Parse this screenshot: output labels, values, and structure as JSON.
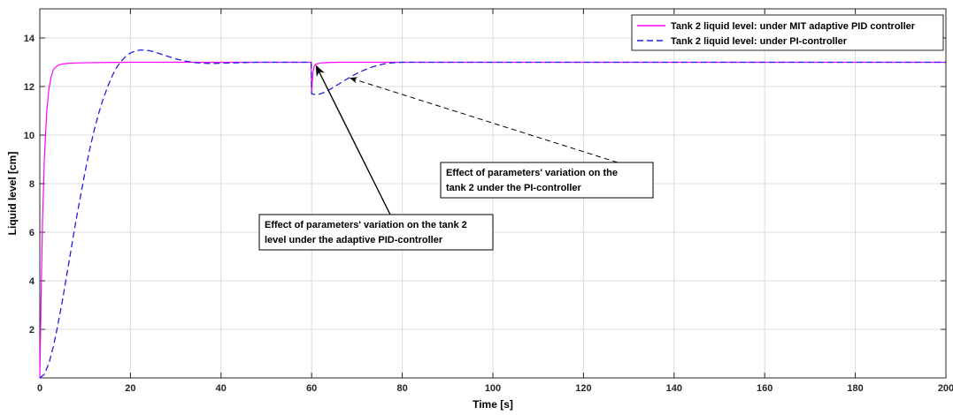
{
  "chart_data": {
    "type": "line",
    "xlabel": "Time [s]",
    "ylabel": "Liquid level [cm]",
    "xlim": [
      0,
      200
    ],
    "ylim": [
      0,
      15.2
    ],
    "xticks": [
      0,
      20,
      40,
      60,
      80,
      100,
      120,
      140,
      160,
      180,
      200
    ],
    "yticks": [
      2,
      4,
      6,
      8,
      10,
      12,
      14
    ],
    "grid": true,
    "legend_position": "top-right",
    "series": [
      {
        "name": "Tank 2 liquid level: under MIT adaptive PID controller",
        "color": "#ff00ff",
        "style": "solid",
        "x": [
          0,
          0.3,
          0.6,
          1,
          1.5,
          2,
          2.5,
          3,
          4,
          5,
          6,
          8,
          10,
          15,
          20,
          30,
          40,
          50,
          59.9,
          60,
          60.1,
          60.3,
          60.6,
          61,
          62,
          64,
          66,
          70,
          80,
          100,
          150,
          200
        ],
        "y": [
          0,
          3.5,
          6.5,
          9.0,
          10.9,
          11.9,
          12.4,
          12.7,
          12.88,
          12.93,
          12.95,
          12.97,
          12.98,
          12.99,
          13.0,
          13.0,
          13.0,
          13.0,
          13.0,
          11.7,
          12.1,
          12.6,
          12.85,
          12.93,
          12.97,
          12.99,
          13.0,
          13.0,
          13.0,
          13.0,
          13.0,
          13.0
        ]
      },
      {
        "name": "Tank 2 liquid level: under PI-controller",
        "color": "#1f1fe0",
        "style": "dashed",
        "x": [
          0,
          1,
          2,
          3,
          4,
          5,
          6,
          7,
          8,
          9,
          10,
          11,
          12,
          13,
          14,
          15,
          16,
          17,
          18,
          19,
          20,
          21,
          22,
          23,
          24,
          25,
          26,
          27,
          28,
          29,
          30,
          32,
          34,
          36,
          38,
          40,
          42,
          44,
          46,
          48,
          50,
          52,
          54,
          56,
          58,
          59.9,
          60,
          60.5,
          61,
          62,
          63,
          64,
          65,
          66,
          67,
          68,
          69,
          70,
          71,
          72,
          73,
          74,
          75,
          76,
          77,
          78,
          79,
          80,
          82,
          84,
          86,
          88,
          90,
          95,
          100,
          110,
          120,
          140,
          160,
          180,
          200
        ],
        "y": [
          0,
          0.15,
          0.6,
          1.3,
          2.2,
          3.2,
          4.3,
          5.4,
          6.5,
          7.5,
          8.5,
          9.4,
          10.2,
          10.9,
          11.5,
          12.0,
          12.45,
          12.8,
          13.05,
          13.25,
          13.38,
          13.46,
          13.5,
          13.5,
          13.48,
          13.44,
          13.38,
          13.32,
          13.26,
          13.2,
          13.14,
          13.05,
          12.99,
          12.96,
          12.95,
          12.96,
          12.97,
          12.98,
          12.99,
          13.0,
          13.0,
          13.0,
          13.0,
          13.0,
          13.0,
          13.0,
          11.7,
          11.68,
          11.67,
          11.7,
          11.78,
          11.88,
          11.99,
          12.1,
          12.22,
          12.33,
          12.44,
          12.54,
          12.63,
          12.71,
          12.78,
          12.84,
          12.89,
          12.93,
          12.96,
          12.98,
          12.99,
          13.0,
          13.0,
          13.0,
          13.0,
          13.0,
          13.0,
          13.0,
          13.0,
          13.0,
          13.0,
          13.0,
          13.0,
          13.0,
          13.0
        ]
      }
    ],
    "annotations": [
      {
        "lines": [
          "Effect of parameters' variation on the tank 2",
          "level under the adaptive PID-controller"
        ],
        "arrow_target": [
          61,
          12.85
        ],
        "arrow_style": "solid"
      },
      {
        "lines": [
          "Effect of parameters' variation on the",
          "tank 2 under the PI-controller"
        ],
        "arrow_target": [
          68.5,
          12.35
        ],
        "arrow_style": "dashed"
      }
    ]
  }
}
